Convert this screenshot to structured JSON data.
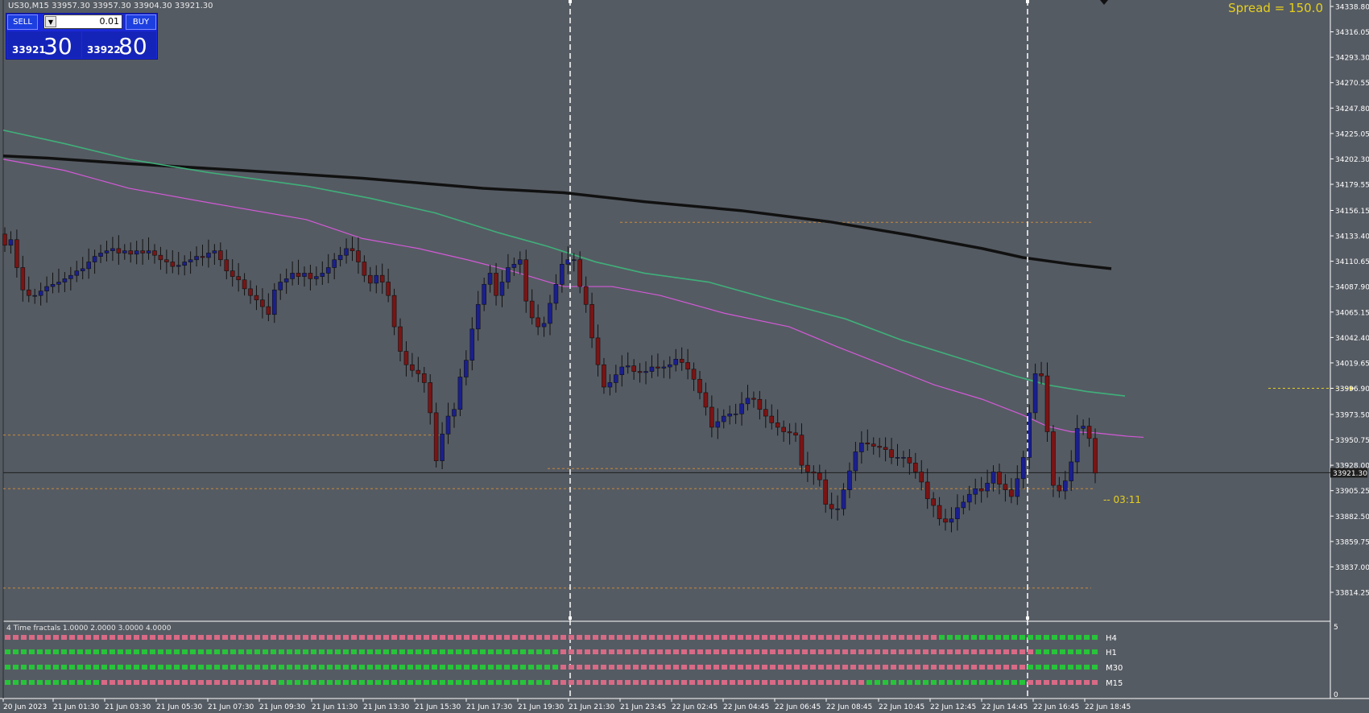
{
  "window": {
    "header": "US30,M15  33957.30 33957.30 33904.30 33921.30"
  },
  "trade_panel": {
    "sell_label": "SELL",
    "buy_label": "BUY",
    "lot_value": "0.01",
    "sell_price_small": "33921",
    "sell_price_big": "30",
    "buy_price_small": "33922",
    "buy_price_big": "80"
  },
  "spread_text": "Spread = 150.0",
  "countdown_text": "-- 03:11",
  "current_price_label": "33921.30",
  "indicator": {
    "title": "4 Time fractals 1.0000 2.0000 3.0000 4.0000",
    "top_scale": "5",
    "bottom_scale": "0",
    "rows": [
      {
        "label": "H4",
        "segments": [
          {
            "color": "pink",
            "count": 116
          },
          {
            "color": "green",
            "count": 20
          }
        ]
      },
      {
        "label": "H1",
        "segments": [
          {
            "color": "green",
            "count": 69
          },
          {
            "color": "pink",
            "count": 59
          },
          {
            "color": "green",
            "count": 8
          }
        ]
      },
      {
        "label": "M30",
        "segments": [
          {
            "color": "green",
            "count": 69
          },
          {
            "color": "pink",
            "count": 58
          },
          {
            "color": "green",
            "count": 9
          }
        ]
      },
      {
        "label": "M15",
        "segments": [
          {
            "color": "green",
            "count": 12
          },
          {
            "color": "pink",
            "count": 22
          },
          {
            "color": "green",
            "count": 34
          },
          {
            "color": "pink",
            "count": 39
          },
          {
            "color": "green",
            "count": 20
          },
          {
            "color": "pink",
            "count": 9
          }
        ]
      }
    ]
  },
  "colors": {
    "background": "#555b63",
    "bull": "#1a1f8f",
    "bear": "#7a1414",
    "ma_black": "#111111",
    "ma_green": "#3fb07a",
    "ma_magenta": "#d35ad8",
    "fractal_pink": "#d86a86",
    "fractal_green": "#27c43a",
    "level": "#c98a3a"
  },
  "chart_data": {
    "type": "candlestick",
    "symbol": "US30",
    "timeframe": "M15",
    "ylim": [
      33814.25,
      34338.8
    ],
    "y_ticks": [
      "34338.80",
      "34316.05",
      "34293.30",
      "34270.55",
      "34247.80",
      "34225.05",
      "34202.30",
      "34179.55",
      "34156.15",
      "34133.40",
      "34110.65",
      "34087.90",
      "34065.15",
      "34042.40",
      "34019.65",
      "33996.90",
      "33973.50",
      "33950.75",
      "33928.00",
      "33905.25",
      "33882.50",
      "33859.75",
      "33837.00",
      "33814.25"
    ],
    "x_ticks": [
      "20 Jun 2023",
      "21 Jun 01:30",
      "21 Jun 03:30",
      "21 Jun 05:30",
      "21 Jun 07:30",
      "21 Jun 09:30",
      "21 Jun 11:30",
      "21 Jun 13:30",
      "21 Jun 15:30",
      "21 Jun 17:30",
      "21 Jun 19:30",
      "21 Jun 21:30",
      "21 Jun 23:45",
      "22 Jun 02:45",
      "22 Jun 04:45",
      "22 Jun 06:45",
      "22 Jun 08:45",
      "22 Jun 10:45",
      "22 Jun 12:45",
      "22 Jun 14:45",
      "22 Jun 16:45",
      "22 Jun 18:45"
    ],
    "close_series": [
      34125,
      34130,
      34105,
      34085,
      34080,
      34080,
      34084,
      34088,
      34090,
      34092,
      34095,
      34098,
      34102,
      34104,
      34110,
      34115,
      34118,
      34120,
      34122,
      34118,
      34120,
      34117,
      34120,
      34118,
      34120,
      34116,
      34112,
      34110,
      34106,
      34107,
      34110,
      34112,
      34115,
      34114,
      34118,
      34120,
      34112,
      34102,
      34097,
      34094,
      34086,
      34080,
      34076,
      34070,
      34063,
      34085,
      34092,
      34095,
      34100,
      34097,
      34100,
      34095,
      34097,
      34100,
      34105,
      34112,
      34116,
      34122,
      34120,
      34110,
      34098,
      34091,
      34098,
      34092,
      34080,
      34052,
      34030,
      34018,
      34013,
      34010,
      34002,
      33975,
      33932,
      33956,
      33972,
      33978,
      34007,
      34022,
      34050,
      34072,
      34090,
      34100,
      34080,
      34092,
      34105,
      34108,
      34112,
      34075,
      34060,
      34052,
      34055,
      34073,
      34090,
      34108,
      34112,
      34112,
      34088,
      34072,
      34042,
      34018,
      33998,
      34002,
      34009,
      34016,
      34017,
      34012,
      34011,
      34012,
      34016,
      34015,
      34016,
      34018,
      34023,
      34020,
      34014,
      34005,
      33993,
      33980,
      33962,
      33967,
      33972,
      33974,
      33974,
      33983,
      33988,
      33987,
      33978,
      33972,
      33966,
      33962,
      33958,
      33957,
      33955,
      33928,
      33922,
      33921,
      33915,
      33893,
      33889,
      33889,
      33906,
      33923,
      33940,
      33948,
      33947,
      33945,
      33944,
      33942,
      33935,
      33935,
      33935,
      33930,
      33922,
      33913,
      33898,
      33892,
      33880,
      33877,
      33880,
      33890,
      33895,
      33902,
      33907,
      33905,
      33912,
      33922,
      33911,
      33906,
      33900,
      33916,
      33935,
      33975,
      34010,
      34008,
      33958,
      33910,
      33905,
      33914,
      33931,
      33961,
      33963,
      33952,
      33921
    ],
    "annotations": {
      "spread": "Spread = 150.0",
      "countdown": "03:11",
      "current_price": "33921.30"
    }
  }
}
